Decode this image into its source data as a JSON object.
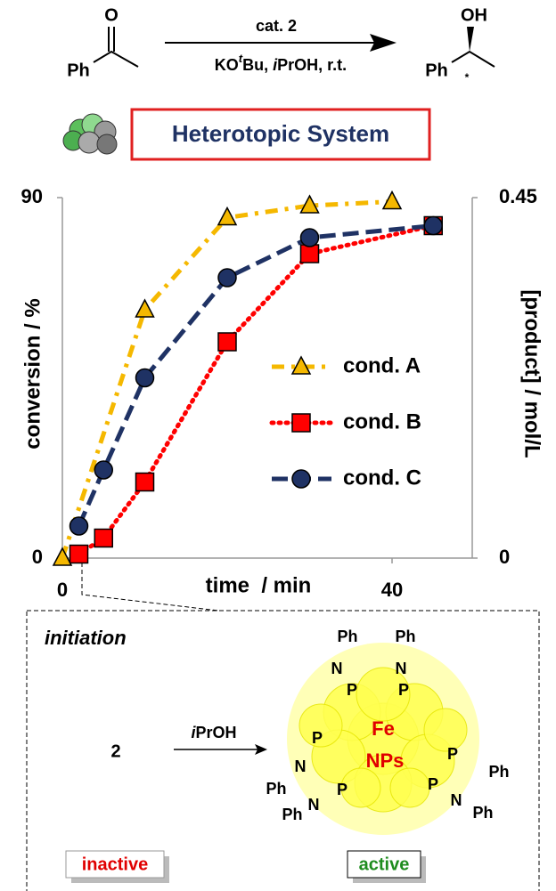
{
  "chart_data": {
    "type": "line",
    "xlabel": "time  / min",
    "ylabel": "conversion / %",
    "y2label": "[product] / mol/L",
    "xlim": [
      0,
      50
    ],
    "xticks": [
      0,
      40
    ],
    "ylim": [
      0,
      90
    ],
    "yticks": [
      0,
      90
    ],
    "y2lim": [
      0,
      0.45
    ],
    "y2ticks": [
      0,
      0.45
    ],
    "series": [
      {
        "name": "cond. A",
        "color": "#f5b800",
        "linestyle": "dashdot",
        "marker": "triangle",
        "x": [
          0,
          10,
          20,
          30,
          40
        ],
        "values": [
          0,
          62,
          85,
          88,
          89
        ]
      },
      {
        "name": "cond. B",
        "color": "#ff0000",
        "linestyle": "dotted",
        "marker": "square",
        "x": [
          2,
          5,
          10,
          20,
          30,
          45
        ],
        "values": [
          1,
          5,
          19,
          54,
          76,
          83
        ]
      },
      {
        "name": "cond. C",
        "color": "#1f3264",
        "linestyle": "dashed",
        "marker": "circle",
        "x": [
          2,
          5,
          10,
          20,
          30,
          45
        ],
        "values": [
          8,
          22,
          45,
          70,
          80,
          83
        ]
      }
    ]
  },
  "scheme": {
    "reactant_o": "O",
    "reactant_ph": "Ph",
    "above_arrow": "cat. 2",
    "below_arrow": [
      "KO",
      "t",
      "Bu, ",
      "i",
      "PrOH, r.t."
    ],
    "product_oh": "OH",
    "product_ph": "Ph",
    "product_star": "*"
  },
  "system_label": "Heterotopic System",
  "initiation": {
    "title": "initiation",
    "precursor": "2",
    "reagent": [
      "i",
      "PrOH"
    ],
    "core": [
      "Fe",
      "NPs"
    ],
    "inactive": "inactive",
    "active": "active",
    "structure_labels": [
      "Ph",
      "Ph",
      "N",
      "N",
      "P",
      "P",
      "P",
      "N",
      "P",
      "N",
      "Ph",
      "Ph",
      "P",
      "P",
      "N",
      "Ph",
      "Ph"
    ]
  }
}
